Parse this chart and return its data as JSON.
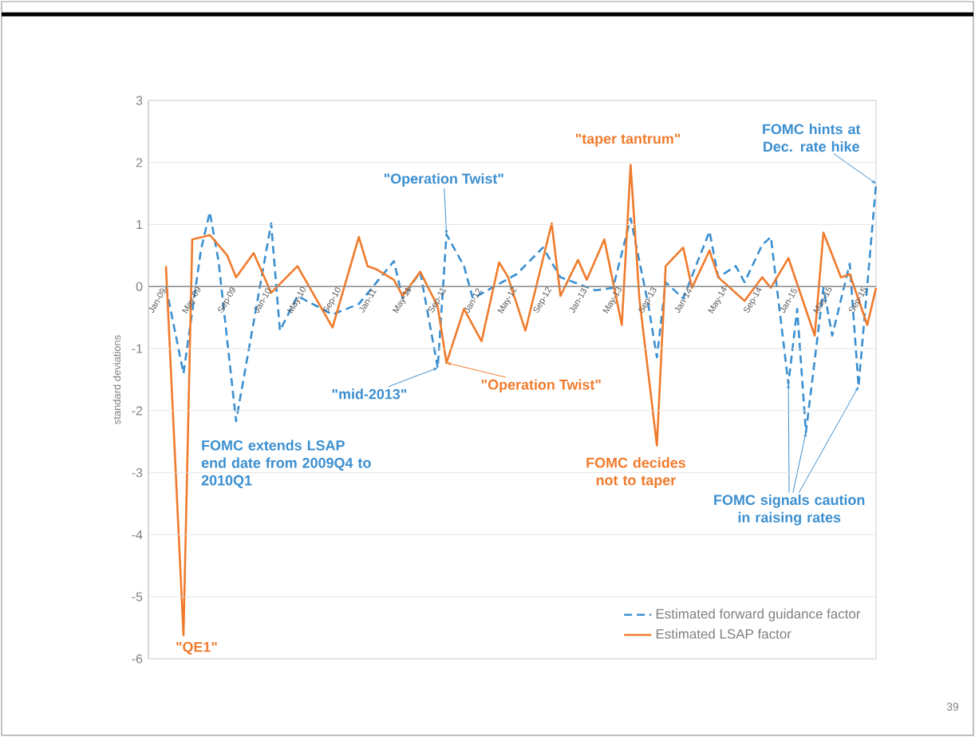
{
  "chart_data": {
    "type": "line",
    "ylabel": "standard deviations",
    "xlim": [
      "2008-12",
      "2015-11"
    ],
    "xticks": [
      {
        "value": "2009-01",
        "label": "Jan-09"
      },
      {
        "value": "2009-05",
        "label": "May-09"
      },
      {
        "value": "2009-09",
        "label": "Sep-09"
      },
      {
        "value": "2010-01",
        "label": "Jan-10"
      },
      {
        "value": "2010-05",
        "label": "May-10"
      },
      {
        "value": "2010-09",
        "label": "Sep-10"
      },
      {
        "value": "2011-01",
        "label": "Jan-11"
      },
      {
        "value": "2011-05",
        "label": "May-11"
      },
      {
        "value": "2011-09",
        "label": "Sep-11"
      },
      {
        "value": "2012-01",
        "label": "Jan-12"
      },
      {
        "value": "2012-05",
        "label": "May-12"
      },
      {
        "value": "2012-09",
        "label": "Sep-12"
      },
      {
        "value": "2013-01",
        "label": "Jan-13"
      },
      {
        "value": "2013-05",
        "label": "May-13"
      },
      {
        "value": "2013-09",
        "label": "Sep-13"
      },
      {
        "value": "2014-01",
        "label": "Jan-14"
      },
      {
        "value": "2014-05",
        "label": "May-14"
      },
      {
        "value": "2014-09",
        "label": "Sep-14"
      },
      {
        "value": "2015-01",
        "label": "Jan-15"
      },
      {
        "value": "2015-05",
        "label": "May-15"
      },
      {
        "value": "2015-09",
        "label": "Sep-15"
      }
    ],
    "ylim": [
      -6,
      3
    ],
    "yticks": [
      -6,
      -5,
      -4,
      -3,
      -2,
      -1,
      0,
      1,
      2,
      3
    ],
    "grid": "y",
    "legend": "bottom right",
    "marker": "none",
    "series": [
      {
        "name": "Estimated forward guidance factor",
        "color": "#3b8fd0",
        "line_style": "dashed",
        "x": [
          "2009-02",
          "2009-04",
          "2009-06",
          "2009-07",
          "2009-08",
          "2009-10",
          "2010-02",
          "2010-03",
          "2010-05",
          "2010-09",
          "2010-12",
          "2011-04",
          "2011-05",
          "2011-07",
          "2011-09",
          "2011-10",
          "2011-12",
          "2012-01",
          "2012-06",
          "2012-09",
          "2012-11",
          "2013-03",
          "2013-05",
          "2013-07",
          "2013-09",
          "2013-10",
          "2013-11",
          "2014-01",
          "2014-04",
          "2014-05",
          "2014-07",
          "2014-08",
          "2014-10",
          "2014-11",
          "2015-01",
          "2015-02",
          "2015-03",
          "2015-05",
          "2015-06",
          "2015-08",
          "2015-09",
          "2015-11"
        ],
        "values": [
          0,
          -1.4,
          0.6,
          1.2,
          0.41,
          -2.17,
          1.02,
          -0.71,
          -0.15,
          -0.45,
          -0.28,
          0.41,
          -0.19,
          0.24,
          -1.31,
          0.84,
          0.33,
          -0.19,
          0.2,
          0.63,
          0.15,
          -0.06,
          -0.02,
          1.1,
          -0.28,
          -1.14,
          0.07,
          -0.19,
          0.89,
          0.15,
          0.33,
          0.07,
          0.67,
          0.8,
          -1.57,
          -0.36,
          -2.35,
          -0.02,
          -0.79,
          0.37,
          -1.61,
          1.66
        ]
      },
      {
        "name": "Estimated LSAP factor",
        "color": "#f07b2c",
        "line_style": "solid",
        "x": [
          "2009-02",
          "2009-04",
          "2009-05",
          "2009-07",
          "2009-08",
          "2009-09",
          "2009-10",
          "2009-12",
          "2010-02",
          "2010-05",
          "2010-09",
          "2010-12",
          "2011-01",
          "2011-02",
          "2011-04",
          "2011-05",
          "2011-07",
          "2011-09",
          "2011-10",
          "2011-12",
          "2012-02",
          "2012-04",
          "2012-05",
          "2012-07",
          "2012-10",
          "2012-11",
          "2013-01",
          "2013-02",
          "2013-04",
          "2013-06",
          "2013-07",
          "2013-08",
          "2013-10",
          "2013-11",
          "2014-01",
          "2014-02",
          "2014-04",
          "2014-05",
          "2014-08",
          "2014-10",
          "2014-11",
          "2015-01",
          "2015-04",
          "2015-05",
          "2015-07",
          "2015-08",
          "2015-10",
          "2015-11"
        ],
        "values": [
          0.33,
          -5.62,
          0.76,
          0.83,
          0.67,
          0.5,
          0.15,
          0.54,
          -0.1,
          0.33,
          -0.66,
          0.8,
          0.33,
          0.28,
          0.11,
          -0.15,
          0.24,
          -0.32,
          -1.23,
          -0.36,
          -0.88,
          0.39,
          0.16,
          -0.71,
          1.02,
          -0.15,
          0.43,
          0.11,
          0.76,
          -0.62,
          1.96,
          -0.19,
          -2.56,
          0.33,
          0.63,
          -0.02,
          0.58,
          0.15,
          -0.23,
          0.15,
          -0.02,
          0.46,
          -0.79,
          0.87,
          0.15,
          0.2,
          -0.62,
          -0.02
        ]
      }
    ],
    "annotations": [
      {
        "text": "\"Operation Twist\"",
        "x": "2011-10",
        "y": 0.84
      },
      "\"taper tantrum\"",
      {
        "text": "FOMC hints at Dec. rate hike",
        "x": "2015-11",
        "y": 1.66
      },
      {
        "text": "\"mid-2013\"",
        "x": "2011-09",
        "y": -1.31
      },
      {
        "text": "\"Operation Twist\"",
        "x": "2011-10",
        "y": -1.23
      },
      "FOMC extends LSAP end date from 2009Q4 to 2010Q1",
      "\"QE1\"",
      "FOMC decides not to taper",
      {
        "text": "FOMC signals caution in raising rates",
        "x": "2015-03",
        "y": -2.35
      },
      "39"
    ]
  }
}
